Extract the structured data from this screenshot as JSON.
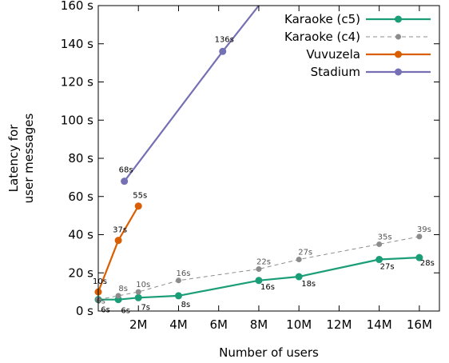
{
  "chart_data": {
    "type": "line",
    "title": "",
    "xlabel": "Number of users",
    "ylabel": [
      "Latency for",
      "user messages"
    ],
    "xlim": [
      0,
      17
    ],
    "ylim": [
      0,
      160
    ],
    "x_ticks": [
      {
        "value": 2,
        "label": "2M"
      },
      {
        "value": 4,
        "label": "4M"
      },
      {
        "value": 6,
        "label": "6M"
      },
      {
        "value": 8,
        "label": "8M"
      },
      {
        "value": 10,
        "label": "10M"
      },
      {
        "value": 12,
        "label": "12M"
      },
      {
        "value": 14,
        "label": "14M"
      },
      {
        "value": 16,
        "label": "16M"
      }
    ],
    "y_ticks": [
      {
        "value": 0,
        "label": "0 s"
      },
      {
        "value": 20,
        "label": "20 s"
      },
      {
        "value": 40,
        "label": "40 s"
      },
      {
        "value": 60,
        "label": "60 s"
      },
      {
        "value": 80,
        "label": "80 s"
      },
      {
        "value": 100,
        "label": "100 s"
      },
      {
        "value": 120,
        "label": "120 s"
      },
      {
        "value": 140,
        "label": "140 s"
      },
      {
        "value": 160,
        "label": "160 s"
      }
    ],
    "grid": false,
    "legend_position": "top-right",
    "series": [
      {
        "name": "Karaoke (c5)",
        "color": "#1b9e77",
        "dashed": false,
        "points": [
          {
            "x": 0,
            "y": 6,
            "label": "6s"
          },
          {
            "x": 1,
            "y": 6,
            "label": "6s"
          },
          {
            "x": 2,
            "y": 7,
            "label": "7s"
          },
          {
            "x": 4,
            "y": 8,
            "label": "8s"
          },
          {
            "x": 8,
            "y": 16,
            "label": "16s"
          },
          {
            "x": 10,
            "y": 18,
            "label": "18s"
          },
          {
            "x": 14,
            "y": 27,
            "label": "27s"
          },
          {
            "x": 16,
            "y": 28,
            "label": "28s"
          }
        ]
      },
      {
        "name": "Karaoke (c4)",
        "color": "#8c8c8c",
        "dashed": true,
        "points": [
          {
            "x": 0,
            "y": 6,
            "label": "6s"
          },
          {
            "x": 1,
            "y": 8,
            "label": "8s"
          },
          {
            "x": 2,
            "y": 10,
            "label": "10s"
          },
          {
            "x": 4,
            "y": 16,
            "label": "16s"
          },
          {
            "x": 8,
            "y": 22,
            "label": "22s"
          },
          {
            "x": 10,
            "y": 27,
            "label": "27s"
          },
          {
            "x": 14,
            "y": 35,
            "label": "35s"
          },
          {
            "x": 16,
            "y": 39,
            "label": "39s"
          }
        ]
      },
      {
        "name": "Vuvuzela",
        "color": "#d95f02",
        "dashed": false,
        "points": [
          {
            "x": 0,
            "y": 10,
            "label": "10s"
          },
          {
            "x": 1,
            "y": 37,
            "label": "37s"
          },
          {
            "x": 2,
            "y": 55,
            "label": "55s"
          }
        ]
      },
      {
        "name": "Stadium",
        "color": "#7570b3",
        "dashed": false,
        "points": [
          {
            "x": 1.3,
            "y": 68,
            "label": "68s"
          },
          {
            "x": 6.2,
            "y": 136,
            "label": "136s"
          }
        ],
        "extends_to": {
          "x": 8,
          "y": 160
        }
      }
    ]
  }
}
